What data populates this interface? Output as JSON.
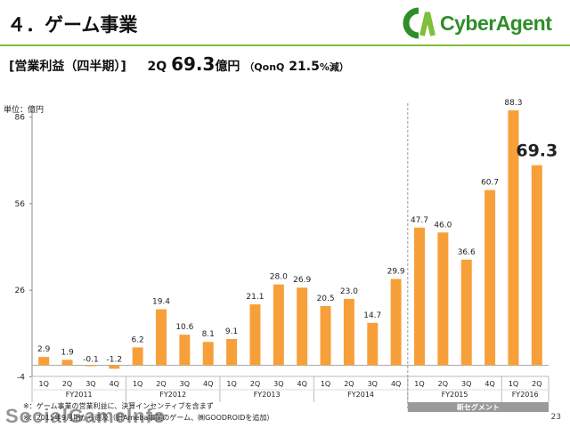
{
  "header": {
    "title": "４．ゲーム事業",
    "logo_text": "CyberAgent",
    "accent_color": "#7fbf3a"
  },
  "subtitle": {
    "label": "[営業利益（四半期）]",
    "quarter": "2Q",
    "value": "69.3",
    "unit": "億円",
    "qonq_label": "（QonQ",
    "qonq_value": "21.5",
    "qonq_unit": "%減）"
  },
  "unit_label": "単位：億円",
  "footnotes": [
    "※：ゲーム事業の営業利益に、決算インセンティブを含まず",
    "※：2015年9月期から遡及（旧Ameba事業のゲーム、㈱GOODROIDを追加）"
  ],
  "page_number": "23",
  "watermark": "SocialGameInfo",
  "chart_data": {
    "type": "bar",
    "ylim": [
      -4,
      90
    ],
    "yticks": [
      -4,
      26,
      56,
      86
    ],
    "grid": false,
    "bar_color": "#f7a03a",
    "highlight_label": "69.3",
    "categories": [
      "1Q",
      "2Q",
      "3Q",
      "4Q",
      "1Q",
      "2Q",
      "3Q",
      "4Q",
      "1Q",
      "2Q",
      "3Q",
      "4Q",
      "1Q",
      "2Q",
      "3Q",
      "4Q",
      "1Q",
      "2Q",
      "3Q",
      "4Q",
      "1Q",
      "2Q"
    ],
    "values": [
      2.9,
      1.9,
      -0.1,
      -1.2,
      6.2,
      19.4,
      10.6,
      8.1,
      9.1,
      21.1,
      28.0,
      26.9,
      20.5,
      23.0,
      14.7,
      29.9,
      47.7,
      46.0,
      36.6,
      60.7,
      88.3,
      69.3
    ],
    "value_labels": [
      "2.9",
      "1.9",
      "-0.1",
      "-1.2",
      "6.2",
      "19.4",
      "10.6",
      "8.1",
      "9.1",
      "21.1",
      "28.0",
      "26.9",
      "20.5",
      "23.0",
      "14.7",
      "29.9",
      "47.7",
      "46.0",
      "36.6",
      "60.7",
      "88.3",
      "69.3"
    ],
    "fiscal_years": [
      {
        "label": "FY2011",
        "count": 4
      },
      {
        "label": "FY2012",
        "count": 4
      },
      {
        "label": "FY2013",
        "count": 4
      },
      {
        "label": "FY2014",
        "count": 4
      },
      {
        "label": "FY2015",
        "count": 4
      },
      {
        "label": "FY2016",
        "count": 2
      }
    ],
    "new_segment_label": "新セグメント"
  }
}
